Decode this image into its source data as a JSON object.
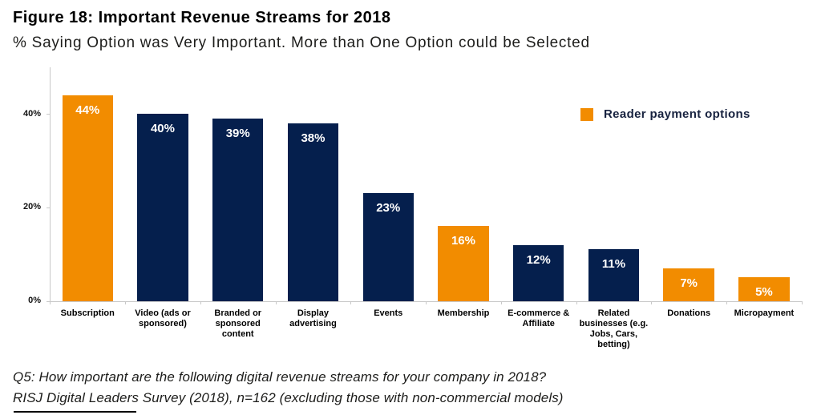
{
  "title": "Figure 18: Important Revenue Streams for 2018",
  "subtitle": "% Saying Option was Very Important. More than One Option could be Selected",
  "legend": {
    "label": "Reader payment options"
  },
  "colors": {
    "orange": "#f28c00",
    "navy": "#051f4d",
    "axis": "#c8c8c8"
  },
  "chart_data": {
    "type": "bar",
    "title": "Figure 18: Important Revenue Streams for 2018",
    "subtitle": "% Saying Option was Very Important. More than One Option could be Selected",
    "categories": [
      "Subscription",
      "Video (ads or sponsored)",
      "Branded or sponsored content",
      "Display advertising",
      "Events",
      "Membership",
      "E-commerce & Affiliate",
      "Related businesses (e.g. Jobs, Cars, betting)",
      "Donations",
      "Micropayment"
    ],
    "category_label_lines": [
      [
        "Subscription"
      ],
      [
        "Video (ads or",
        "sponsored)"
      ],
      [
        "Branded or",
        "sponsored",
        "content"
      ],
      [
        "Display",
        "advertising"
      ],
      [
        "Events"
      ],
      [
        "Membership"
      ],
      [
        "E-commerce &",
        "Affiliate"
      ],
      [
        "Related",
        "businesses (e.g.",
        "Jobs, Cars,",
        "betting)"
      ],
      [
        "Donations"
      ],
      [
        "Micropayment"
      ]
    ],
    "values": [
      44,
      40,
      39,
      38,
      23,
      16,
      12,
      11,
      7,
      5
    ],
    "value_labels": [
      "44%",
      "40%",
      "39%",
      "38%",
      "23%",
      "16%",
      "12%",
      "11%",
      "7%",
      "5%"
    ],
    "reader_payment_option": [
      true,
      false,
      false,
      false,
      false,
      true,
      false,
      false,
      true,
      true
    ],
    "ylim": [
      0,
      50
    ],
    "yticks": [
      0,
      20,
      40
    ],
    "ytick_labels": [
      "0%",
      "20%",
      "40%"
    ],
    "legend": [
      {
        "label": "Reader payment options",
        "color": "orange"
      }
    ],
    "legend_position": "upper right",
    "grid": false
  },
  "footnotes": [
    "Q5: How important are the following digital revenue streams for your company in 2018?",
    "RISJ Digital Leaders Survey (2018), n=162 (excluding those with non-commercial models)"
  ]
}
